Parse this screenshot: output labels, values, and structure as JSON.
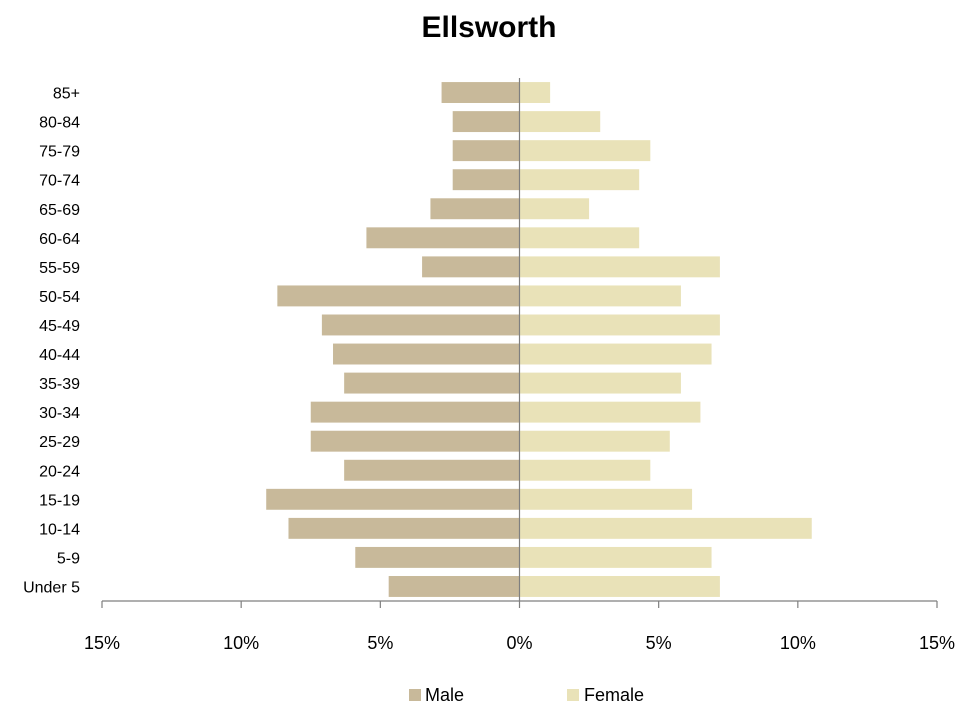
{
  "chart_data": {
    "type": "bar",
    "orientation": "horizontal",
    "title": "Ellsworth",
    "categories": [
      "Under 5",
      "5-9",
      "10-14",
      "15-19",
      "20-24",
      "25-29",
      "30-34",
      "35-39",
      "40-44",
      "45-49",
      "50-54",
      "55-59",
      "60-64",
      "65-69",
      "70-74",
      "75-79",
      "80-84",
      "85+"
    ],
    "series": [
      {
        "name": "Male",
        "color": "#c8b99a",
        "values": [
          4.7,
          5.9,
          8.3,
          9.1,
          6.3,
          7.5,
          7.5,
          6.3,
          6.7,
          7.1,
          8.7,
          3.5,
          5.5,
          3.2,
          2.4,
          2.4,
          2.4,
          2.8
        ]
      },
      {
        "name": "Female",
        "color": "#e9e2b8",
        "values": [
          7.2,
          6.9,
          10.5,
          6.2,
          4.7,
          5.4,
          6.5,
          5.8,
          6.9,
          7.2,
          5.8,
          7.2,
          4.3,
          2.5,
          4.3,
          4.7,
          2.9,
          1.1
        ]
      }
    ],
    "xlim": [
      -15,
      15
    ],
    "xticks": [
      -15,
      -10,
      -5,
      0,
      5,
      10,
      15
    ],
    "xtick_labels": [
      "15%",
      "10%",
      "5%",
      "0%",
      "5%",
      "10%",
      "15%"
    ],
    "legend_position": "bottom",
    "grid": false
  }
}
